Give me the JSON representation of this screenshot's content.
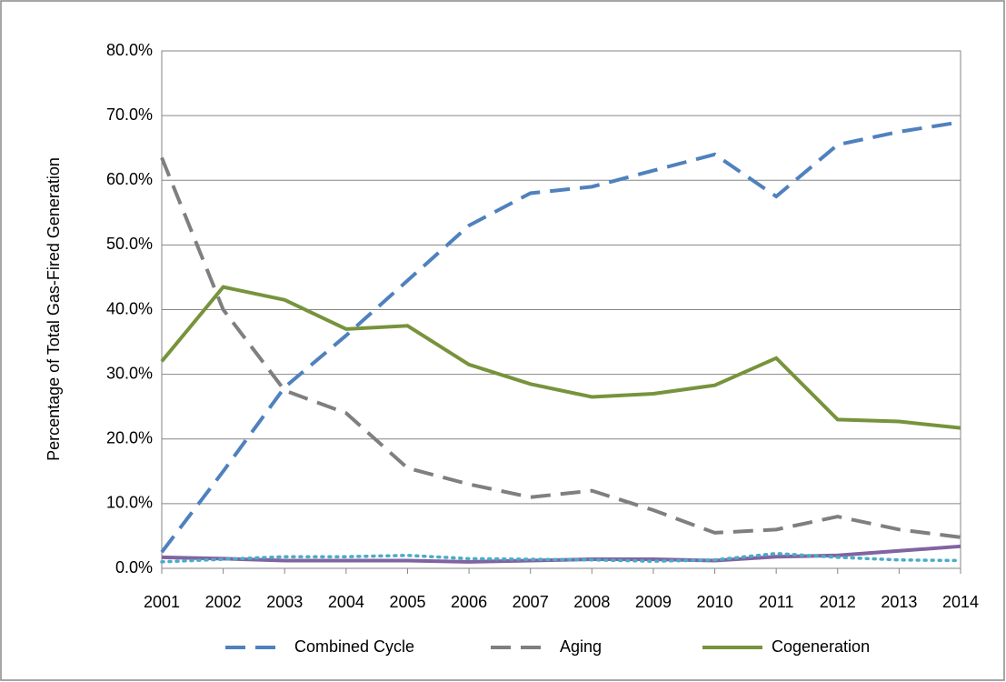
{
  "chart_data": {
    "type": "line",
    "y_label": "Percentage of Total Gas-Fired Generation",
    "x": [
      2001,
      2002,
      2003,
      2004,
      2005,
      2006,
      2007,
      2008,
      2009,
      2010,
      2011,
      2012,
      2013,
      2014
    ],
    "xlim": [
      2001,
      2014
    ],
    "xticks": [
      2001,
      2002,
      2003,
      2004,
      2005,
      2006,
      2007,
      2008,
      2009,
      2010,
      2011,
      2012,
      2013,
      2014
    ],
    "ylim": [
      0,
      80
    ],
    "yticks": [
      {
        "value": 0,
        "label": "0.0%"
      },
      {
        "value": 10,
        "label": "10.0%"
      },
      {
        "value": 20,
        "label": "20.0%"
      },
      {
        "value": 30,
        "label": "30.0%"
      },
      {
        "value": 40,
        "label": "40.0%"
      },
      {
        "value": 50,
        "label": "50.0%"
      },
      {
        "value": 60,
        "label": "60.0%"
      },
      {
        "value": 70,
        "label": "70.0%"
      },
      {
        "value": 80,
        "label": "80.0%"
      }
    ],
    "grid": true,
    "legend": "bottom",
    "series": [
      {
        "name": "Combined Cycle",
        "color": "#4f81bd",
        "style": "dashed",
        "values": [
          2.5,
          15,
          28,
          36,
          44.5,
          53,
          58,
          59,
          61.5,
          64,
          57.5,
          65.5,
          67.5,
          69
        ]
      },
      {
        "name": "Aging",
        "color": "#7f7f7f",
        "style": "dashed",
        "values": [
          63.5,
          40,
          27.5,
          24,
          15.5,
          13,
          11,
          12,
          9,
          5.5,
          6,
          8,
          6,
          4.8
        ]
      },
      {
        "name": "Cogeneration",
        "color": "#77933c",
        "style": "solid",
        "values": [
          32,
          43.5,
          41.5,
          37,
          37.5,
          31.5,
          28.5,
          26.5,
          27,
          28.3,
          32.5,
          23,
          22.7,
          21.7
        ]
      },
      {
        "color": "#8064a2",
        "style": "solid",
        "values": [
          1.7,
          1.5,
          1.2,
          1.2,
          1.2,
          1,
          1.2,
          1.4,
          1.4,
          1.2,
          1.8,
          2,
          2.7,
          3.4
        ]
      },
      {
        "color": "#4bacc6",
        "style": "dotted",
        "values": [
          1,
          1.4,
          1.8,
          1.8,
          2,
          1.5,
          1.4,
          1.3,
          1.1,
          1.3,
          2.3,
          1.7,
          1.3,
          1.2
        ]
      }
    ]
  }
}
